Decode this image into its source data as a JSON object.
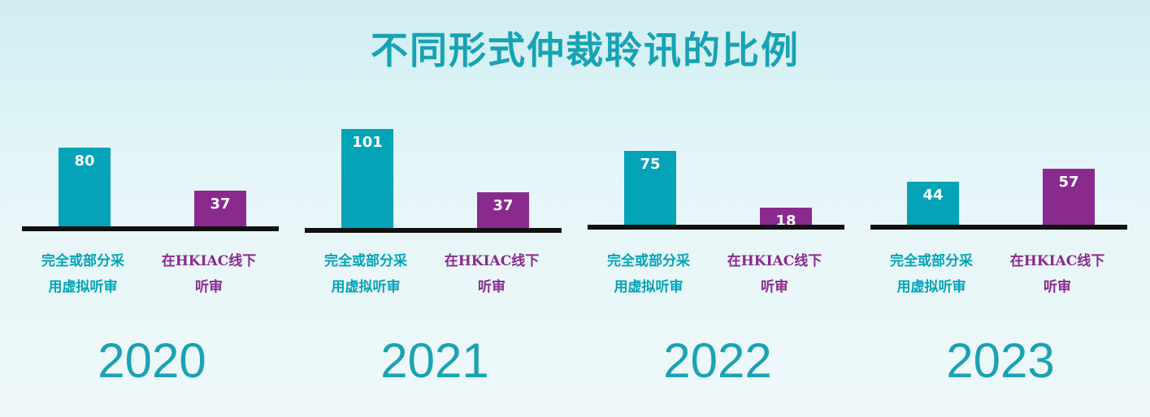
{
  "title": "不同形式仲裁聆讯的比例",
  "colors": {
    "virtual": "#05a3b7",
    "in_person": "#8a2a8e",
    "year_text": "#1aa2b3",
    "title_text": "#17a3b3"
  },
  "chart_data": [
    {
      "type": "bar",
      "title": "2020",
      "categories": [
        "完全或部分采用虚拟听审",
        "在HKIAC线下听审"
      ],
      "values": [
        80,
        37
      ]
    },
    {
      "type": "bar",
      "title": "2021",
      "categories": [
        "完全或部分采用虚拟听审",
        "在HKIAC线下听审"
      ],
      "values": [
        101,
        37
      ]
    },
    {
      "type": "bar",
      "title": "2022",
      "categories": [
        "完全或部分采用虚拟听审",
        "在HKIAC线下听审"
      ],
      "values": [
        75,
        18
      ]
    },
    {
      "type": "bar",
      "title": "2023",
      "categories": [
        "完全或部分采用虚拟听审",
        "在HKIAC线下听审"
      ],
      "values": [
        44,
        57
      ]
    }
  ],
  "category_lines": [
    [
      "完全或部分采",
      "用虚拟听审"
    ],
    [
      "在HKIAC线下",
      "听审"
    ]
  ]
}
